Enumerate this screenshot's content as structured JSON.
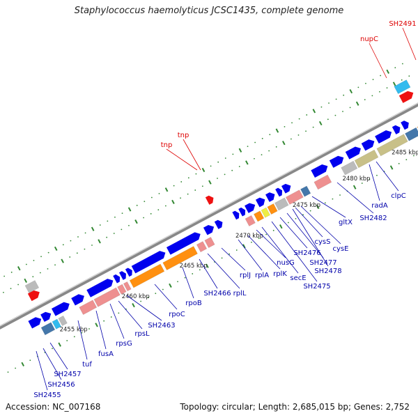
{
  "title": "Staphylococcus haemolyticus JCSC1435, complete genome",
  "accession": "Accession: NC_007168",
  "summary": "Topology: circular; Length: 2,685,015 bp; Genes: 2,752",
  "colors": {
    "cds_forward": "#0000ee",
    "rrna": "#ee9090",
    "trna": "#ff9010",
    "other_rna": "#c8c088",
    "forward_feature_red": "#ee1111",
    "pseudo_gray": "#bbbbbb",
    "cyan_feature": "#33bbee",
    "blue_gray_feature": "#4477aa",
    "backbone": "#888888",
    "tick_green": "#338833",
    "forward_label": "#dd0000",
    "reverse_label": "#0000aa"
  },
  "ruler": [
    "2455 kbp",
    "2460 kbp",
    "2465 kbp",
    "2470 kbp",
    "2475 kbp",
    "2480 kbp",
    "2485 kbp"
  ],
  "upper_labels": [
    "tnp",
    "tnp",
    "nupC",
    "SH2491"
  ],
  "lower_labels": [
    "SH2455",
    "SH2456",
    "SH2457",
    "tuf",
    "fusA",
    "rpsG",
    "rpsL",
    "SH2463",
    "rpoC",
    "rpoB",
    "SH2466",
    "rplL",
    "rplJ",
    "rplA",
    "rplK",
    "nusG",
    "secE",
    "SH2475",
    "SH2476",
    "SH2477",
    "SH2478",
    "cysE",
    "cysS",
    "gltX",
    "SH2482",
    "radA",
    "clpC"
  ]
}
